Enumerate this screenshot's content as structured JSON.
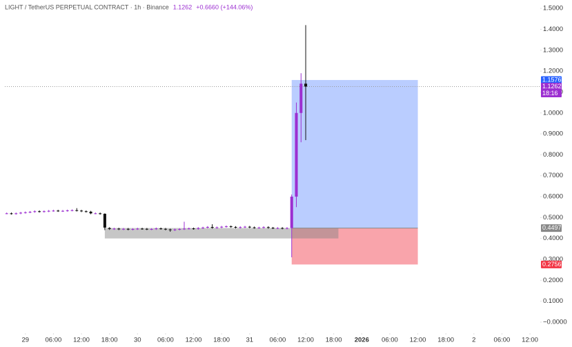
{
  "chart_data": {
    "type": "candlestick",
    "title": "LIGHT / TetherUS PERPETUAL CONTRACT · 1h · Binance",
    "last": 1.1262,
    "change_label": "+0.6660 (+144.06%)",
    "countdown": "18:16",
    "up_color": "#9c2fd1",
    "down_color": "#111111",
    "x": [
      -4,
      -3,
      -2,
      -1,
      0,
      1,
      2,
      3,
      4,
      5,
      6,
      7,
      8,
      9,
      10,
      11,
      12,
      13,
      14,
      15,
      16,
      17,
      18,
      19,
      20,
      21,
      22,
      23,
      24,
      25,
      26,
      27,
      28,
      29,
      30,
      31,
      32,
      33,
      34,
      35,
      36,
      37,
      38,
      39,
      40,
      41,
      42,
      43,
      44,
      45,
      46,
      47,
      48,
      49,
      50,
      51,
      52,
      53,
      54,
      55,
      56,
      57,
      58,
      59,
      60
    ],
    "open": [
      0.52,
      0.52,
      0.518,
      0.52,
      0.523,
      0.525,
      0.527,
      0.53,
      0.528,
      0.53,
      0.532,
      0.533,
      0.531,
      0.532,
      0.534,
      0.535,
      0.533,
      0.53,
      0.528,
      0.52,
      0.52,
      0.518,
      0.45,
      0.445,
      0.447,
      0.444,
      0.446,
      0.443,
      0.445,
      0.447,
      0.446,
      0.444,
      0.445,
      0.448,
      0.446,
      0.443,
      0.44,
      0.443,
      0.445,
      0.447,
      0.448,
      0.446,
      0.45,
      0.452,
      0.455,
      0.451,
      0.453,
      0.456,
      0.458,
      0.455,
      0.452,
      0.454,
      0.456,
      0.453,
      0.451,
      0.452,
      0.454,
      0.451,
      0.449,
      0.45,
      0.448,
      0.45,
      0.6,
      1.0,
      1.14
    ],
    "close": [
      0.52,
      0.518,
      0.52,
      0.523,
      0.525,
      0.527,
      0.53,
      0.528,
      0.53,
      0.532,
      0.533,
      0.531,
      0.532,
      0.534,
      0.535,
      0.533,
      0.53,
      0.528,
      0.52,
      0.52,
      0.518,
      0.452,
      0.445,
      0.447,
      0.444,
      0.446,
      0.443,
      0.445,
      0.447,
      0.446,
      0.444,
      0.445,
      0.448,
      0.446,
      0.443,
      0.44,
      0.443,
      0.445,
      0.447,
      0.448,
      0.446,
      0.45,
      0.452,
      0.455,
      0.451,
      0.453,
      0.456,
      0.458,
      0.455,
      0.452,
      0.454,
      0.456,
      0.453,
      0.451,
      0.452,
      0.454,
      0.451,
      0.449,
      0.45,
      0.448,
      0.45,
      0.6,
      1.0,
      1.14,
      1.1262
    ],
    "high": [
      0.524,
      0.524,
      0.524,
      0.527,
      0.529,
      0.531,
      0.534,
      0.534,
      0.534,
      0.536,
      0.537,
      0.537,
      0.536,
      0.538,
      0.539,
      0.545,
      0.537,
      0.534,
      0.532,
      0.524,
      0.524,
      0.52,
      0.454,
      0.451,
      0.451,
      0.45,
      0.45,
      0.449,
      0.451,
      0.451,
      0.45,
      0.449,
      0.452,
      0.452,
      0.45,
      0.447,
      0.447,
      0.449,
      0.48,
      0.452,
      0.452,
      0.454,
      0.456,
      0.459,
      0.468,
      0.457,
      0.46,
      0.462,
      0.462,
      0.459,
      0.458,
      0.46,
      0.46,
      0.457,
      0.456,
      0.458,
      0.458,
      0.455,
      0.454,
      0.454,
      0.454,
      0.61,
      1.05,
      1.19,
      1.42
    ],
    "low": [
      0.516,
      0.514,
      0.514,
      0.516,
      0.519,
      0.521,
      0.523,
      0.524,
      0.524,
      0.526,
      0.528,
      0.527,
      0.527,
      0.528,
      0.53,
      0.529,
      0.526,
      0.524,
      0.516,
      0.516,
      0.514,
      0.44,
      0.441,
      0.441,
      0.44,
      0.44,
      0.439,
      0.439,
      0.441,
      0.442,
      0.44,
      0.44,
      0.441,
      0.442,
      0.439,
      0.432,
      0.436,
      0.439,
      0.441,
      0.443,
      0.442,
      0.442,
      0.446,
      0.448,
      0.447,
      0.447,
      0.449,
      0.452,
      0.451,
      0.448,
      0.448,
      0.45,
      0.449,
      0.447,
      0.447,
      0.448,
      0.447,
      0.445,
      0.445,
      0.444,
      0.444,
      0.31,
      0.55,
      0.86,
      0.87
    ],
    "xlim": [
      -4.4,
      110.5
    ],
    "ylim": [
      -0.043,
      1.54
    ],
    "xticks": [
      {
        "value": 0,
        "label": "29"
      },
      {
        "value": 6,
        "label": "06:00"
      },
      {
        "value": 12,
        "label": "12:00"
      },
      {
        "value": 18,
        "label": "18:00"
      },
      {
        "value": 24,
        "label": "30"
      },
      {
        "value": 30,
        "label": "06:00"
      },
      {
        "value": 36,
        "label": "12:00"
      },
      {
        "value": 42,
        "label": "18:00"
      },
      {
        "value": 48,
        "label": "31"
      },
      {
        "value": 54,
        "label": "06:00"
      },
      {
        "value": 60,
        "label": "12:00"
      },
      {
        "value": 66,
        "label": "18:00"
      },
      {
        "value": 72,
        "label": "2026"
      },
      {
        "value": 78,
        "label": "06:00"
      },
      {
        "value": 84,
        "label": "12:00"
      },
      {
        "value": 90,
        "label": "18:00"
      },
      {
        "value": 96,
        "label": "2"
      },
      {
        "value": 102,
        "label": "06:00"
      },
      {
        "value": 108,
        "label": "12:00"
      }
    ],
    "yticks": [
      {
        "value": 1.5,
        "label": "1.5000"
      },
      {
        "value": 1.4,
        "label": "1.4000"
      },
      {
        "value": 1.3,
        "label": "1.3000"
      },
      {
        "value": 1.2,
        "label": "1.2000"
      },
      {
        "value": 1.1,
        "label": "1.1000"
      },
      {
        "value": 1.0,
        "label": "1.0000"
      },
      {
        "value": 0.9,
        "label": "0.9000"
      },
      {
        "value": 0.8,
        "label": "0.8000"
      },
      {
        "value": 0.7,
        "label": "0.7000"
      },
      {
        "value": 0.6,
        "label": "0.6000"
      },
      {
        "value": 0.5,
        "label": "0.5000"
      },
      {
        "value": 0.4,
        "label": "0.4000"
      },
      {
        "value": 0.3,
        "label": "0.3000"
      },
      {
        "value": 0.2,
        "label": "0.2000"
      },
      {
        "value": 0.1,
        "label": "0.1000"
      },
      {
        "value": 0,
        "label": "−0.0000"
      }
    ],
    "position": {
      "start": 57,
      "end": 84,
      "entry": 0.4497,
      "target": 1.1576,
      "stop": 0.2756,
      "target_color": "#2962ff",
      "stop_color": "#f23645",
      "entry_color": "#888888"
    },
    "range_box": {
      "x": [
        17,
        67
      ],
      "y": [
        0.4,
        0.4497
      ],
      "color": "#808080"
    }
  }
}
